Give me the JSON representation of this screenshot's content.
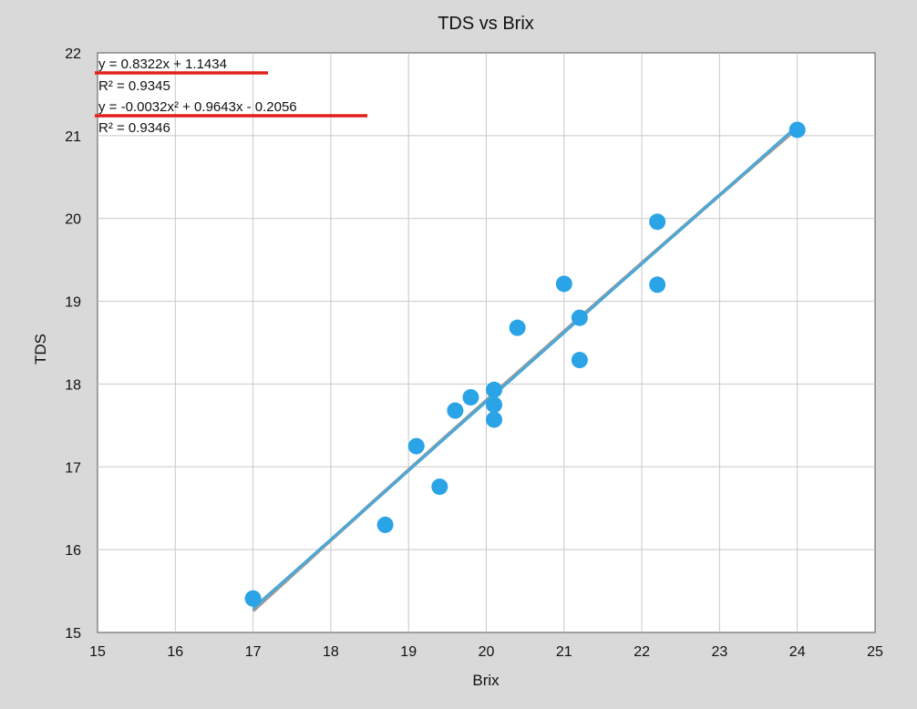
{
  "chart_data": {
    "type": "scatter",
    "title": "TDS vs Brix",
    "xlabel": "Brix",
    "ylabel": "TDS",
    "xlim": [
      15,
      25
    ],
    "ylim": [
      15,
      22
    ],
    "xticks": [
      "15",
      "16",
      "17",
      "18",
      "19",
      "20",
      "21",
      "22",
      "23",
      "24",
      "25"
    ],
    "yticks": [
      "15",
      "16",
      "17",
      "18",
      "19",
      "20",
      "21",
      "22"
    ],
    "grid": true,
    "series": [
      {
        "color": "#2aa4e6",
        "points": [
          [
            17.0,
            15.41
          ],
          [
            18.7,
            16.3
          ],
          [
            19.1,
            17.25
          ],
          [
            19.4,
            16.76
          ],
          [
            19.6,
            17.68
          ],
          [
            19.8,
            17.84
          ],
          [
            20.1,
            17.93
          ],
          [
            20.1,
            17.75
          ],
          [
            20.1,
            17.57
          ],
          [
            20.4,
            18.68
          ],
          [
            21.0,
            19.21
          ],
          [
            21.2,
            18.8
          ],
          [
            21.2,
            18.29
          ],
          [
            22.2,
            19.96
          ],
          [
            22.2,
            19.2
          ],
          [
            24.0,
            21.07
          ]
        ]
      }
    ],
    "trendlines": [
      {
        "kind": "linear",
        "color": "#4aa8d8",
        "coefficients": [
          0.8322,
          1.1434
        ],
        "x_range": [
          17,
          24
        ],
        "equation": "y = 0.8322x + 1.1434",
        "r2": "R² = 0.9345"
      },
      {
        "kind": "polynomial",
        "color": "#9a9a9a",
        "coefficients": [
          -0.0032,
          0.9643,
          -0.2056
        ],
        "x_range": [
          17,
          24
        ],
        "equation": "y = -0.0032x² + 0.9643x - 0.2056",
        "r2": "R² = 0.9346"
      }
    ],
    "annotations": [
      {
        "type": "underline",
        "color": "#e0211a",
        "target": "y = 0.8322x + 1.1434"
      },
      {
        "type": "underline",
        "color": "#e0211a",
        "target": "y = -0.0032x² + 0.9643x - 0.2056"
      }
    ]
  }
}
